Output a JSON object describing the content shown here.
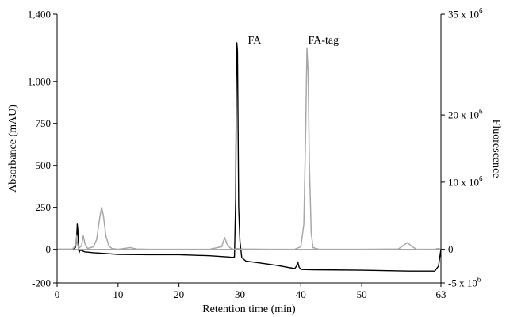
{
  "chart_data": {
    "type": "line",
    "xlabel": "Retention time (min)",
    "ylabel_left": "Absorbance (mAU)",
    "ylabel_right": "Fluorescence",
    "xlim": [
      0,
      63
    ],
    "ylim_left": [
      -200,
      1400
    ],
    "ylim_right": [
      -5,
      35
    ],
    "x_ticks": [
      "0",
      "10",
      "20",
      "30",
      "40",
      "50",
      "63"
    ],
    "y_left_ticks": [
      "-200",
      "0",
      "250",
      "500",
      "750",
      "1,000",
      "1,400"
    ],
    "y_right_ticks": [
      {
        "value": -5,
        "mantissa": "-5 x 10",
        "exp": "6"
      },
      {
        "value": 0,
        "mantissa": "0",
        "exp": ""
      },
      {
        "value": 10,
        "mantissa": "10 x 10",
        "exp": "6"
      },
      {
        "value": 20,
        "mantissa": "20 x 10",
        "exp": "6"
      },
      {
        "value": 35,
        "mantissa": "35 x 10",
        "exp": "6"
      }
    ],
    "annotations": [
      {
        "text": "FA",
        "x": 31.3,
        "y": 1250
      },
      {
        "text": "FA-tag",
        "x": 41.2,
        "y": 1250
      }
    ],
    "series": [
      {
        "axis": "left",
        "color": "#000000",
        "points": [
          [
            0,
            0
          ],
          [
            2.5,
            0
          ],
          [
            3.0,
            10
          ],
          [
            3.2,
            60
          ],
          [
            3.3,
            150
          ],
          [
            3.4,
            120
          ],
          [
            3.5,
            30
          ],
          [
            3.6,
            -20
          ],
          [
            3.7,
            -10
          ],
          [
            3.9,
            -5
          ],
          [
            4.5,
            -15
          ],
          [
            6,
            -20
          ],
          [
            8,
            -25
          ],
          [
            10,
            -30
          ],
          [
            15,
            -32
          ],
          [
            20,
            -32
          ],
          [
            25,
            -38
          ],
          [
            28,
            -45
          ],
          [
            28.8,
            -48
          ],
          [
            29.1,
            -45
          ],
          [
            29.3,
            300
          ],
          [
            29.4,
            900
          ],
          [
            29.5,
            1230
          ],
          [
            29.6,
            1180
          ],
          [
            29.7,
            700
          ],
          [
            29.8,
            250
          ],
          [
            30.0,
            50
          ],
          [
            30.3,
            -50
          ],
          [
            31,
            -70
          ],
          [
            33,
            -80
          ],
          [
            36,
            -95
          ],
          [
            39,
            -115
          ],
          [
            39.3,
            -100
          ],
          [
            39.5,
            -75
          ],
          [
            39.7,
            -105
          ],
          [
            40,
            -120
          ],
          [
            42,
            -122
          ],
          [
            50,
            -125
          ],
          [
            58,
            -130
          ],
          [
            62,
            -130
          ],
          [
            62.6,
            -100
          ],
          [
            63,
            0
          ]
        ]
      },
      {
        "axis": "left",
        "color": "#a8a8a8",
        "points": [
          [
            0,
            0
          ],
          [
            2.5,
            0
          ],
          [
            3.0,
            20
          ],
          [
            3.2,
            80
          ],
          [
            3.3,
            40
          ],
          [
            3.5,
            5
          ],
          [
            4,
            20
          ],
          [
            4.3,
            80
          ],
          [
            4.6,
            30
          ],
          [
            5,
            5
          ],
          [
            6,
            15
          ],
          [
            6.5,
            60
          ],
          [
            7,
            190
          ],
          [
            7.3,
            250
          ],
          [
            7.6,
            200
          ],
          [
            8,
            80
          ],
          [
            8.5,
            20
          ],
          [
            9,
            5
          ],
          [
            10,
            0
          ],
          [
            12,
            10
          ],
          [
            13,
            2
          ],
          [
            15,
            0
          ],
          [
            20,
            0
          ],
          [
            25,
            0
          ],
          [
            27,
            15
          ],
          [
            27.5,
            70
          ],
          [
            27.9,
            30
          ],
          [
            28.5,
            5
          ],
          [
            29,
            0
          ],
          [
            29.5,
            5
          ],
          [
            30,
            2
          ],
          [
            35,
            0
          ],
          [
            39,
            0
          ],
          [
            40,
            15
          ],
          [
            40.5,
            150
          ],
          [
            40.8,
            700
          ],
          [
            41.0,
            1200
          ],
          [
            41.2,
            1050
          ],
          [
            41.4,
            500
          ],
          [
            41.7,
            100
          ],
          [
            42,
            10
          ],
          [
            43,
            0
          ],
          [
            50,
            0
          ],
          [
            56,
            2
          ],
          [
            57.5,
            40
          ],
          [
            58.3,
            15
          ],
          [
            59,
            0
          ],
          [
            62,
            0
          ],
          [
            62.5,
            5
          ],
          [
            63,
            0
          ]
        ]
      }
    ]
  }
}
